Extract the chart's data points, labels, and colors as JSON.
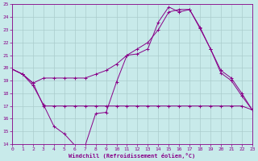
{
  "xlabel": "Windchill (Refroidissement éolien,°C)",
  "bg_color": "#c8eaea",
  "line_color": "#880088",
  "grid_color": "#aacccc",
  "xlim": [
    0,
    23
  ],
  "ylim": [
    14,
    25
  ],
  "yticks": [
    14,
    15,
    16,
    17,
    18,
    19,
    20,
    21,
    22,
    23,
    24,
    25
  ],
  "xticks": [
    0,
    1,
    2,
    3,
    4,
    5,
    6,
    7,
    8,
    9,
    10,
    11,
    12,
    13,
    14,
    15,
    16,
    17,
    18,
    19,
    20,
    21,
    22,
    23
  ],
  "s1_x": [
    0,
    1,
    2,
    3,
    4,
    5,
    6,
    7,
    8,
    9,
    10,
    11,
    12,
    13,
    14,
    15,
    16,
    17,
    18,
    19,
    20,
    21,
    22,
    23
  ],
  "s1_y": [
    19.9,
    19.5,
    18.6,
    17.1,
    15.4,
    14.8,
    13.9,
    13.9,
    16.4,
    16.5,
    18.9,
    21.0,
    21.1,
    21.5,
    23.6,
    24.8,
    24.4,
    24.6,
    23.1,
    21.5,
    19.6,
    19.0,
    17.8,
    16.7
  ],
  "s2_x": [
    0,
    1,
    2,
    3,
    4,
    5,
    6,
    7,
    8,
    9,
    10,
    11,
    12,
    13,
    14,
    15,
    16,
    17,
    18,
    19,
    20,
    21,
    22,
    23
  ],
  "s2_y": [
    19.9,
    19.5,
    18.8,
    19.2,
    19.2,
    19.2,
    19.2,
    19.2,
    19.5,
    19.8,
    20.3,
    21.0,
    21.5,
    22.0,
    23.0,
    24.4,
    24.6,
    24.6,
    23.2,
    21.5,
    19.8,
    19.2,
    18.0,
    16.7
  ],
  "s3_x": [
    0,
    1,
    2,
    3,
    4,
    5,
    6,
    7,
    8,
    9,
    10,
    11,
    12,
    13,
    14,
    15,
    16,
    17,
    18,
    19,
    20,
    21,
    22,
    23
  ],
  "s3_y": [
    19.9,
    19.5,
    18.8,
    17.0,
    17.0,
    17.0,
    17.0,
    17.0,
    17.0,
    17.0,
    17.0,
    17.0,
    17.0,
    17.0,
    17.0,
    17.0,
    17.0,
    17.0,
    17.0,
    17.0,
    17.0,
    17.0,
    17.0,
    16.7
  ]
}
